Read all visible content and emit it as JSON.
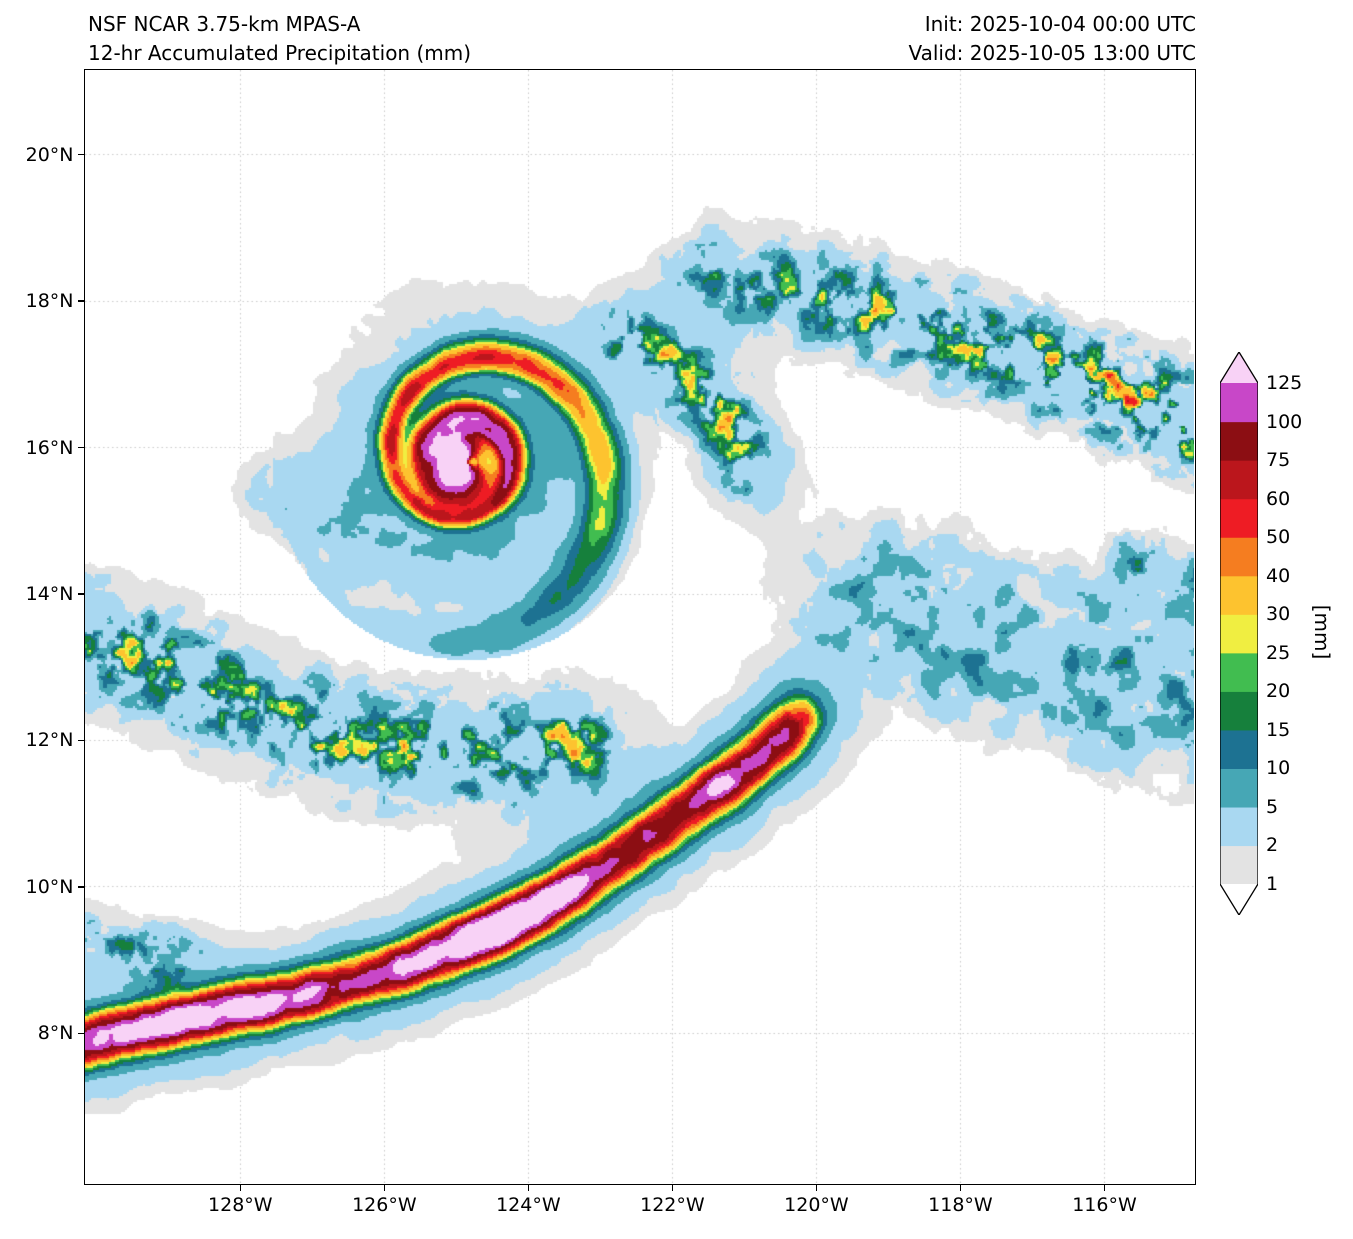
{
  "header": {
    "model_line": "NSF NCAR 3.75-km MPAS-A",
    "product_line": "12-hr Accumulated Precipitation (mm)",
    "init_line": "Init: 2025-10-04 00:00 UTC",
    "valid_line": "Valid: 2025-10-05 13:00 UTC"
  },
  "axes": {
    "x_tick_labels": [
      "128°W",
      "126°W",
      "124°W",
      "122°W",
      "120°W",
      "118°W",
      "116°W"
    ],
    "x_tick_lons": [
      -128,
      -126,
      -124,
      -122,
      -120,
      -118,
      -116
    ],
    "y_tick_labels": [
      "20°N",
      "18°N",
      "16°N",
      "14°N",
      "12°N",
      "10°N",
      "8°N"
    ],
    "y_tick_lats": [
      20,
      18,
      16,
      14,
      12,
      10,
      8
    ],
    "lon_min": -130.15,
    "lon_max": -114.75,
    "lat_min": 5.95,
    "lat_max": 21.15
  },
  "grid": {
    "color": "#c8c8c8",
    "style": "dotted"
  },
  "colorbar": {
    "unit_label": "[mm]",
    "tick_labels": [
      "125",
      "100",
      "75",
      "60",
      "50",
      "40",
      "30",
      "25",
      "20",
      "15",
      "10",
      "5",
      "2",
      "1"
    ],
    "levels_mm": [
      1,
      2,
      5,
      10,
      15,
      20,
      25,
      30,
      40,
      50,
      60,
      75,
      100,
      125
    ],
    "interval_colors": [
      "#e3e3e3",
      "#a9d8f1",
      "#46a7b5",
      "#1d7292",
      "#16803c",
      "#41bd50",
      "#f0ee41",
      "#fdc32f",
      "#f57d20",
      "#ee1c24",
      "#bb161c",
      "#8c0e13",
      "#c847c8"
    ],
    "under_color": "#ffffff",
    "over_color": "#f8d2f6",
    "outline_color": "#000000"
  },
  "chart_data": {
    "type": "heatmap",
    "title": "12-hr Accumulated Precipitation (mm)",
    "units": "mm",
    "lon_range": [
      -130.15,
      -114.75
    ],
    "lat_range": [
      5.95,
      21.15
    ],
    "levels_mm": [
      1,
      2,
      5,
      10,
      15,
      20,
      25,
      30,
      40,
      50,
      60,
      75,
      100,
      125
    ],
    "max_shaded_mm": 125,
    "features": [
      {
        "name": "tropical-cyclone",
        "kind": "cyclone",
        "center_lon": -124.85,
        "center_lat": 15.8,
        "max_mm": 130,
        "core_amp": 150,
        "core_sigma": 0.45,
        "crescent_azimuth_deg": 185,
        "crescent_strength": 0.85,
        "ring_amp": 85,
        "ring_radius_deg": 0.62,
        "ring_sigma_deg": 0.18,
        "ring_azimuth_deg": 70,
        "spiral_pitch": 5.0,
        "spiral_r0_deg": 0.55,
        "arm_amp": 55,
        "arm_radius_deg": 1.25,
        "arm_radial_sigma": 0.85,
        "arm_angular_sigma": 0.7,
        "env_amp1": 8,
        "env_sigma1": 1.35,
        "env_amp2": 3.2,
        "env_sigma2": 2.0
      },
      {
        "name": "itcz-rainband",
        "kind": "band",
        "max_mm": 140,
        "width_deg": 0.26,
        "env_amp": 6,
        "env_width_deg": 0.75,
        "path": [
          [
            -130.3,
            7.85
          ],
          [
            -129.2,
            8.1
          ],
          [
            -128.0,
            8.35
          ],
          [
            -126.8,
            8.6
          ],
          [
            -125.6,
            8.95
          ],
          [
            -124.6,
            9.35
          ],
          [
            -123.7,
            9.8
          ],
          [
            -122.9,
            10.3
          ],
          [
            -122.1,
            10.85
          ],
          [
            -121.3,
            11.4
          ],
          [
            -120.7,
            11.85
          ],
          [
            -120.25,
            12.3
          ]
        ],
        "intensity_bumps": [
          [
            0.17,
            0.07,
            0.5
          ],
          [
            0.46,
            0.08,
            0.55
          ],
          [
            0.82,
            0.04,
            0.35
          ]
        ]
      },
      {
        "name": "sw-outer-rainband",
        "kind": "cells",
        "amp_mm": 55,
        "amp_grow": 0,
        "width_deg": 0.5,
        "noise_freq": 3.4,
        "noise_thresh": 0.5,
        "env_amp": 3.5,
        "env_width_deg": 0.95,
        "path": [
          [
            -130.3,
            13.4
          ],
          [
            -129.2,
            13.05
          ],
          [
            -128.0,
            12.55
          ],
          [
            -126.8,
            12.05
          ],
          [
            -125.7,
            11.85
          ],
          [
            -124.6,
            11.8
          ],
          [
            -123.3,
            11.95
          ]
        ]
      },
      {
        "name": "left-edge-cluster",
        "kind": "cells",
        "amp_mm": 30,
        "amp_grow": 0,
        "width_deg": 0.32,
        "noise_freq": 3.6,
        "noise_thresh": 0.45,
        "env_amp": 2.5,
        "env_width_deg": 0.55,
        "path": [
          [
            -130.3,
            9.35
          ],
          [
            -129.5,
            9.05
          ],
          [
            -128.9,
            8.95
          ]
        ]
      },
      {
        "name": "east-spiral-cluster",
        "kind": "cells",
        "amp_mm": 60,
        "amp_grow": 0,
        "width_deg": 0.32,
        "noise_freq": 3.8,
        "noise_thresh": 0.45,
        "env_amp": 4,
        "env_width_deg": 0.7,
        "path": [
          [
            -122.6,
            17.5
          ],
          [
            -121.9,
            17.05
          ],
          [
            -121.3,
            16.45
          ],
          [
            -120.95,
            15.75
          ]
        ]
      },
      {
        "name": "ne-scattered-band",
        "kind": "cells",
        "amp_mm": 30,
        "amp_grow": 70,
        "width_deg": 0.45,
        "noise_freq": 3.8,
        "noise_thresh": 0.48,
        "env_amp": 3.5,
        "env_width_deg": 0.8,
        "path": [
          [
            -121.4,
            18.35
          ],
          [
            -120.0,
            18.1
          ],
          [
            -118.6,
            17.7
          ],
          [
            -117.2,
            17.25
          ],
          [
            -115.9,
            16.8
          ],
          [
            -114.5,
            16.2
          ]
        ]
      },
      {
        "name": "east-scattered-area",
        "kind": "cells",
        "amp_mm": 14,
        "amp_grow": 14,
        "width_deg": 0.85,
        "noise_freq": 3.0,
        "noise_thresh": 0.42,
        "env_amp": 3.2,
        "env_width_deg": 1.15,
        "path": [
          [
            -119.3,
            13.95
          ],
          [
            -117.8,
            13.4
          ],
          [
            -116.4,
            12.95
          ],
          [
            -115.2,
            12.7
          ],
          [
            -114.4,
            12.6
          ]
        ]
      },
      {
        "name": "right-edge-cluster",
        "kind": "cells",
        "amp_mm": 22,
        "amp_grow": 0,
        "width_deg": 0.35,
        "noise_freq": 3.6,
        "noise_thresh": 0.45,
        "env_amp": 2.2,
        "env_width_deg": 0.55,
        "path": [
          [
            -115.5,
            14.4
          ],
          [
            -114.5,
            14.0
          ]
        ]
      },
      {
        "name": "west-speckle-patch",
        "kind": "cells",
        "amp_mm": 4,
        "amp_grow": 0,
        "width_deg": 0.5,
        "noise_freq": 3.2,
        "noise_thresh": 0.35,
        "env_amp": 1.8,
        "env_width_deg": 0.6,
        "path": [
          [
            -127.5,
            15.4
          ],
          [
            -126.6,
            14.7
          ]
        ]
      }
    ]
  }
}
